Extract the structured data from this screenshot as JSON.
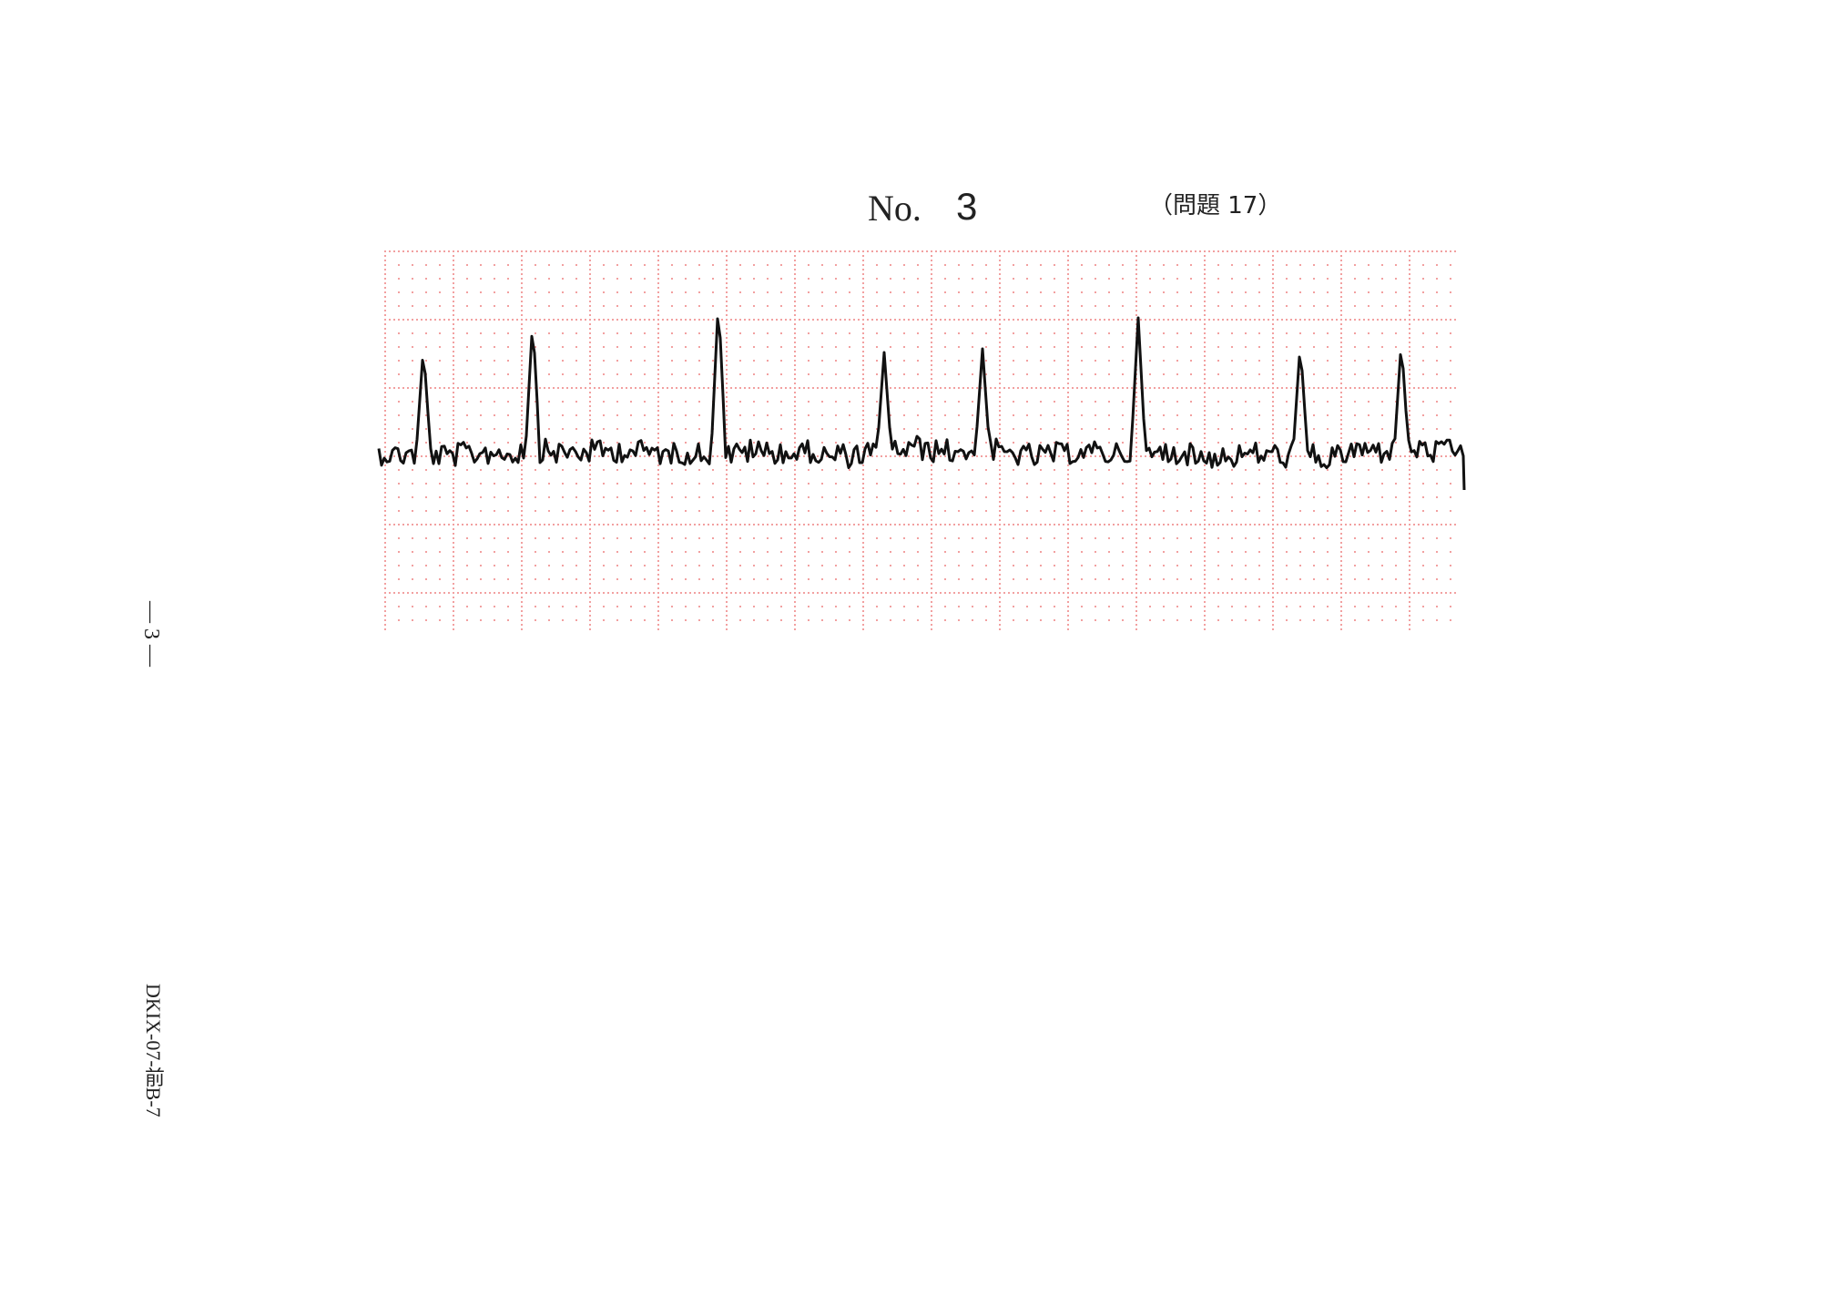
{
  "header": {
    "label": "No.",
    "number": "3",
    "question": "（問題 17）"
  },
  "footer": {
    "page": "— 3 —",
    "code": "DKIX-07-前B-7"
  }
}
